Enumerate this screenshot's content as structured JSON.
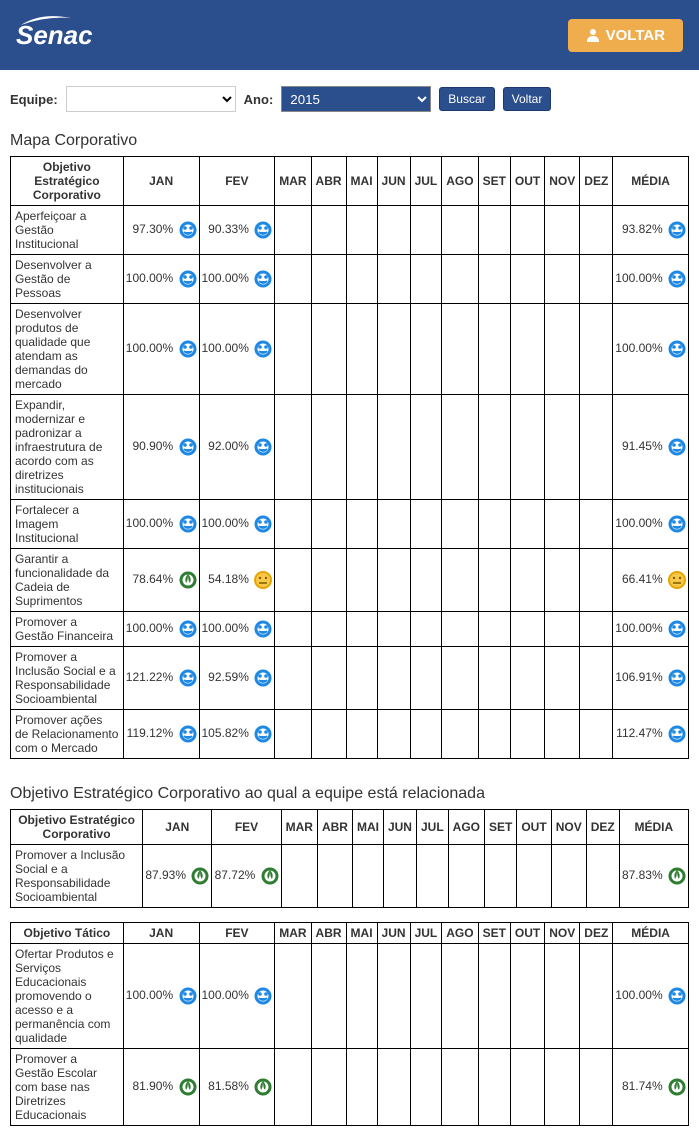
{
  "header": {
    "logo_text": "Senac",
    "voltar_label": "VOLTAR"
  },
  "filters": {
    "equipe_label": "Equipe:",
    "ano_label": "Ano:",
    "ano_value": "2015",
    "buscar_label": "Buscar",
    "voltar_label": "Voltar"
  },
  "section1_title": "Mapa Corporativo",
  "cols": {
    "objetivo_corp": "Objetivo Estratégico Corporativo",
    "objetivo_tatico": "Objetivo Tático",
    "jan": "JAN",
    "fev": "FEV",
    "mar": "MAR",
    "abr": "ABR",
    "mai": "MAI",
    "jun": "JUN",
    "jul": "JUL",
    "ago": "AGO",
    "set": "SET",
    "out": "OUT",
    "nov": "NOV",
    "dez": "DEZ",
    "media": "MÉDIA"
  },
  "table1": [
    {
      "label": "Aperfeiçoar a Gestão Institucional",
      "jan": "97.30%",
      "jan_icon": "blue",
      "fev": "90.33%",
      "fev_icon": "blue",
      "media": "93.82%",
      "media_icon": "blue"
    },
    {
      "label": "Desenvolver a Gestão de Pessoas",
      "jan": "100.00%",
      "jan_icon": "blue",
      "fev": "100.00%",
      "fev_icon": "blue",
      "media": "100.00%",
      "media_icon": "blue"
    },
    {
      "label": "Desenvolver produtos de qualidade que atendam as demandas do mercado",
      "jan": "100.00%",
      "jan_icon": "blue",
      "fev": "100.00%",
      "fev_icon": "blue",
      "media": "100.00%",
      "media_icon": "blue"
    },
    {
      "label": "Expandir, modernizar e padronizar a infraestrutura de acordo com as diretrizes institucionais",
      "jan": "90.90%",
      "jan_icon": "blue",
      "fev": "92.00%",
      "fev_icon": "blue",
      "media": "91.45%",
      "media_icon": "blue"
    },
    {
      "label": "Fortalecer a Imagem Institucional",
      "jan": "100.00%",
      "jan_icon": "blue",
      "fev": "100.00%",
      "fev_icon": "blue",
      "media": "100.00%",
      "media_icon": "blue"
    },
    {
      "label": "Garantir a funcionalidade da Cadeia de Suprimentos",
      "jan": "78.64%",
      "jan_icon": "green",
      "fev": "54.18%",
      "fev_icon": "yellow",
      "media": "66.41%",
      "media_icon": "yellow"
    },
    {
      "label": "Promover a Gestão Financeira",
      "jan": "100.00%",
      "jan_icon": "blue",
      "fev": "100.00%",
      "fev_icon": "blue",
      "media": "100.00%",
      "media_icon": "blue"
    },
    {
      "label": "Promover a Inclusão Social e a Responsabilidade Socioambiental",
      "jan": "121.22%",
      "jan_icon": "blue",
      "fev": "92.59%",
      "fev_icon": "blue",
      "media": "106.91%",
      "media_icon": "blue"
    },
    {
      "label": "Promover ações de Relacionamento com o Mercado",
      "jan": "119.12%",
      "jan_icon": "blue",
      "fev": "105.82%",
      "fev_icon": "blue",
      "media": "112.47%",
      "media_icon": "blue"
    }
  ],
  "section2_title": "Objetivo Estratégico Corporativo ao qual a equipe está relacionada",
  "table2": [
    {
      "label": "Promover a Inclusão Social e a Responsabilidade Socioambiental",
      "jan": "87.93%",
      "jan_icon": "green",
      "fev": "87.72%",
      "fev_icon": "green",
      "media": "87.83%",
      "media_icon": "green"
    }
  ],
  "table3": [
    {
      "label": "Ofertar Produtos e Serviços Educacionais promovendo o acesso e a permanência com qualidade",
      "jan": "100.00%",
      "jan_icon": "blue",
      "fev": "100.00%",
      "fev_icon": "blue",
      "media": "100.00%",
      "media_icon": "blue"
    },
    {
      "label": "Promover a Gestão Escolar com base nas Diretrizes Educacionais",
      "jan": "81.90%",
      "jan_icon": "green",
      "fev": "81.58%",
      "fev_icon": "green",
      "media": "81.74%",
      "media_icon": "green"
    }
  ]
}
